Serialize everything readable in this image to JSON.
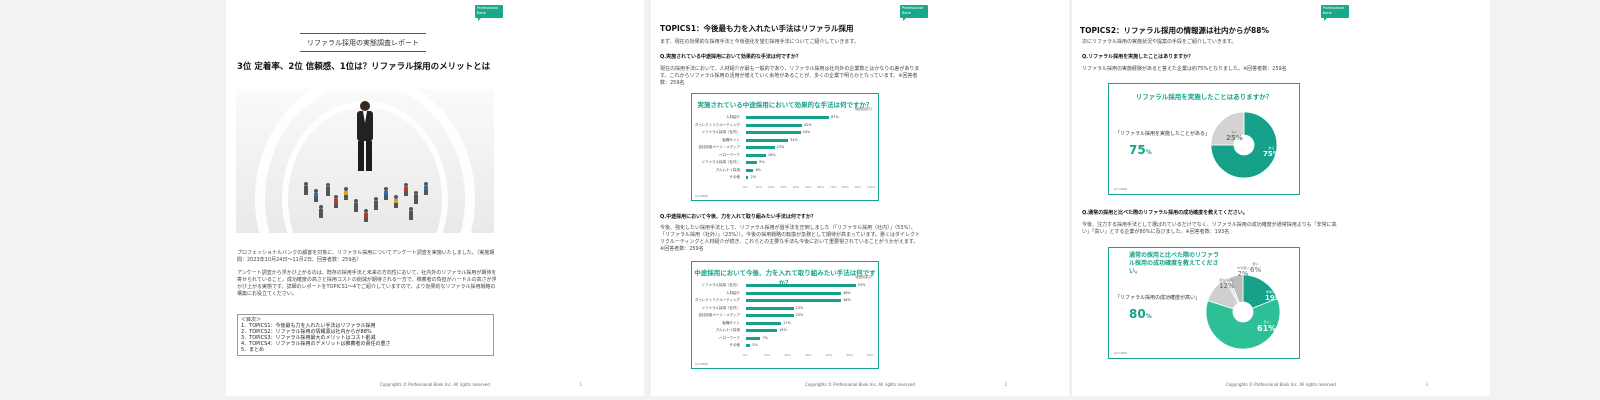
{
  "logo": {
    "line1": "Professional",
    "line2": "Bank"
  },
  "page1": {
    "header": "リファラル採用の実態調査レポート",
    "title": "3位 定着率、2位 信頼感、1位は？リファラル採用のメリットとは",
    "para1": "プロフェッショナルバンクの顧客を対象に、リファラル採用についてアンケート調査を実施いたしました。（実施期間：2023年10月24日〜11月2日、回答者数：259名）",
    "para2": "アンケート調査から浮かび上がるのは、既存の採用手法と未来の方向性において、社内外のリファラル採用が期待を寄せられていること。成功確度の高さと採用コストの削減が期待される一方で、推薦者の負担がハードルの高さが浮かび上がる実態です。詳細のレポートをTOPICS1〜4でご紹介していますので、より効果的なリファラル採用戦略の構築にお役立てください。",
    "toc_title": "＜目次＞",
    "toc": [
      "1．TOPICS1：今後最も力を入れたい手法はリファラル採用",
      "2．TOPICS2：リファラル採用の情報源は社内からが88%",
      "3．TOPICS3：リファラル採用最大のメリットはコスト削減",
      "4．TOPICS4：リファラル採用のデメリットは推薦者の責任の重さ",
      "5．まとめ"
    ],
    "footer": "Copyrights © Professional Bank Inc. All rights reserved",
    "page_no": "1"
  },
  "page2": {
    "title": "TOPICS1：今後最も力を入れたい手法はリファラル採用",
    "intro": "まず、現在の効果的な採用手法と今後強化を望む採用手法についてご紹介していきます。",
    "q1": "Q.実施されている中途採用において効果的な手法は何ですか？",
    "q1_text": "現在の採用手法において、人材紹介が最も一般的であり、リファラル採用は社内外の企業数とはかなりの差があります。これからリファラル採用の活用が増えていく余地があることが、多くの企業で明らかとなっています。※回答者数：259名",
    "chart1": {
      "title": "実施されている中途採用において効果的な手法は何ですか？",
      "note": "（複数回答可）",
      "n": "(n＝259)",
      "labels": [
        "人材紹介",
        "ダイレクトリクルーティング",
        "リファラル採用（社内）",
        "転職サイト",
        "自社採用ページ・メディア",
        "ハローワーク",
        "リファラル採用（社外）",
        "アルムナイ採用",
        "その他"
      ],
      "values": [
        "67%",
        "45%",
        "44%",
        "34%",
        "23%",
        "16%",
        "9%",
        "6%",
        "2%"
      ],
      "ticks": [
        "0%",
        "10%",
        "20%",
        "30%",
        "40%",
        "50%",
        "60%",
        "70%",
        "80%",
        "90%",
        "100%"
      ]
    },
    "q2": "Q.中途採用において今後、力を入れて取り組みたい手法は何ですか？",
    "q2_text": "今後、強化したい採用手法として、リファラル採用が首手法を圧倒しました（「リファラル採用（社内）」（53%）、「リファラル採用（社外）」（23%））。今後の採用戦略の転換が急務として期待が高まっています。悪くはダイレクトリクルーティングと人材紹介が続き、これらとの主要な手法も今後において重要視されていることがうかがえます。※回答者数：259名",
    "chart2": {
      "title": "中途採用において今後、力を入れて取り組みたい手法は何ですか？",
      "note": "（複数回答可）",
      "n": "(n＝259)",
      "labels": [
        "リファラル採用（社内）",
        "人材紹介",
        "ダイレクトリクルーティング",
        "リファラル採用（社外）",
        "自社採用ページ・メディア",
        "転職サイト",
        "アルムナイ採用",
        "ハローワーク",
        "その他"
      ],
      "values": [
        "53%",
        "46%",
        "46%",
        "23%",
        "23%",
        "17%",
        "15%",
        "7%",
        "2%"
      ],
      "ticks": [
        "0%",
        "10%",
        "20%",
        "30%",
        "40%",
        "50%",
        "60%"
      ]
    },
    "footer": "Copyrights © Professional Bank Inc. All rights reserved",
    "page_no": "2"
  },
  "page3": {
    "title": "TOPICS2：リファラル採用の情報源は社内からが88%",
    "intro": "次にリファラル採用の実施状況や提案の手段をご紹介していきます。",
    "q1": "Q.リファラル採用を実施したことはありますか？",
    "q1_text": "リファラル採用の実施経験があると答えた企業は約75%となりました。※回答者数：259名",
    "pie1": {
      "title": "リファラル採用を実施したことはありますか？",
      "caption": "「リファラル採用を実施したことがある」",
      "big": "75",
      "pct": "%",
      "slice_yes_label": "ある",
      "slice_yes": "75%",
      "slice_no_label": "ない",
      "slice_no": "25%",
      "n": "(n＝259)"
    },
    "q2": "Q.通常の採用と比べた際のリファラル採用の成功確度を教えてください。",
    "q2_text": "今後、注力する採用手法として選ばれているだけでなく、リファラル採用の成功確度が通常採用よりも「非常に高い」「高い」とする企業が80%に及びました。※回答者数：193名",
    "pie2": {
      "title": "通常の採用と比べた際のリファラル採用の成功確度を教えてください。",
      "caption": "「リファラル採用の成功確度が高い」",
      "big": "80",
      "pct": "%",
      "slices": [
        {
          "label": "非常に高い",
          "value": "19%"
        },
        {
          "label": "高い",
          "value": "61%"
        },
        {
          "label": "変わらない",
          "value": "12%"
        },
        {
          "label": "やや低い",
          "value": "2%"
        },
        {
          "label": "低い",
          "value": "6%"
        }
      ],
      "n": "(n＝193)"
    },
    "footer": "Copyrights © Professional Bank Inc. All rights reserved",
    "page_no": "3"
  },
  "colors": {
    "accent": "#16a28a",
    "accent_light": "#2dbf95",
    "gray": "#d3d3d3"
  }
}
